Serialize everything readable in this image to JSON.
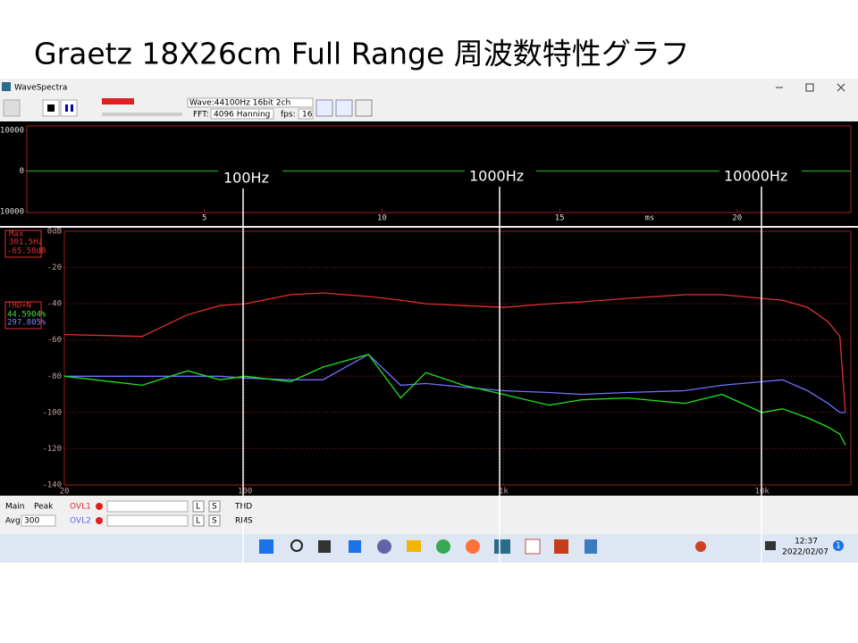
{
  "slide_title": "Graetz 18X26cm Full Range 周波数特性グラフ",
  "window": {
    "title": "WaveSpectra"
  },
  "toolbar": {
    "wave": "Wave:44100Hz 16bit 2ch",
    "fft_label": "FFT:",
    "fft": "4096 Hanning",
    "fps_label": "fps:",
    "fps": "16"
  },
  "readouts": {
    "max_label": "Max",
    "max_freq": "301.5Hz",
    "max_level": "-65.58dB",
    "thd_label": "THD+N",
    "thd_l": "44.5904%",
    "thd_r": "297.805%"
  },
  "annotations": [
    "100Hz",
    "1000Hz",
    "10000Hz"
  ],
  "status": {
    "main": "Main",
    "peak": "Peak",
    "ovl1": "OVL1",
    "ovl2": "OVL2",
    "avg": "Avg:",
    "avg_value": "300",
    "l": "L",
    "s": "S",
    "thd": "THD",
    "rms": "RMS"
  },
  "taskbar": {
    "time": "12:37",
    "date": "2022/02/07",
    "badge": "1"
  },
  "chart_data": [
    {
      "type": "line",
      "x_unit": "ms",
      "xlim": [
        0,
        23.2
      ],
      "xticks": [
        5,
        10,
        15,
        20
      ],
      "ylim": [
        -10000,
        10000
      ],
      "yticks": [
        10000,
        0,
        -10000
      ],
      "x": [
        0,
        23.2
      ],
      "series": [
        {
          "color": "#1fa01f",
          "values": [
            0,
            0
          ]
        }
      ]
    },
    {
      "type": "line",
      "log_x": true,
      "xlim": [
        20,
        22050
      ],
      "xticks": [
        20,
        100,
        {
          "value": 1000,
          "label": "1k"
        },
        {
          "value": 10000,
          "label": "10k"
        }
      ],
      "ylim": [
        -140,
        0
      ],
      "yticks": [
        {
          "value": 0,
          "label": "0dB"
        },
        -20,
        -40,
        -60,
        -80,
        -100,
        -120,
        -140
      ],
      "grid": true,
      "x": [
        20,
        40,
        60,
        80,
        100,
        150,
        200,
        300,
        400,
        500,
        700,
        1000,
        1500,
        2000,
        3000,
        5000,
        7000,
        10000,
        12000,
        15000,
        18000,
        20000,
        21000
      ],
      "series": [
        {
          "color": "#e03030",
          "values": [
            -57,
            -58,
            -46,
            -41,
            -40,
            -35,
            -34,
            -36,
            -38,
            -40,
            -41,
            -42,
            -40,
            -39,
            -37,
            -35,
            -35,
            -37,
            -38,
            -42,
            -50,
            -58,
            -100
          ]
        },
        {
          "color": "#7070ff",
          "values": [
            -80,
            -80,
            -80,
            -80,
            -81,
            -82,
            -82,
            -68,
            -85,
            -84,
            -86,
            -88,
            -89,
            -90,
            -89,
            -88,
            -85,
            -83,
            -82,
            -88,
            -95,
            -100,
            -100
          ]
        },
        {
          "color": "#20e020",
          "values": [
            -80,
            -85,
            -77,
            -82,
            -80,
            -83,
            -75,
            -68,
            -92,
            -78,
            -85,
            -90,
            -96,
            -93,
            -92,
            -95,
            -90,
            -100,
            -98,
            -103,
            -108,
            -112,
            -118
          ]
        }
      ]
    }
  ]
}
